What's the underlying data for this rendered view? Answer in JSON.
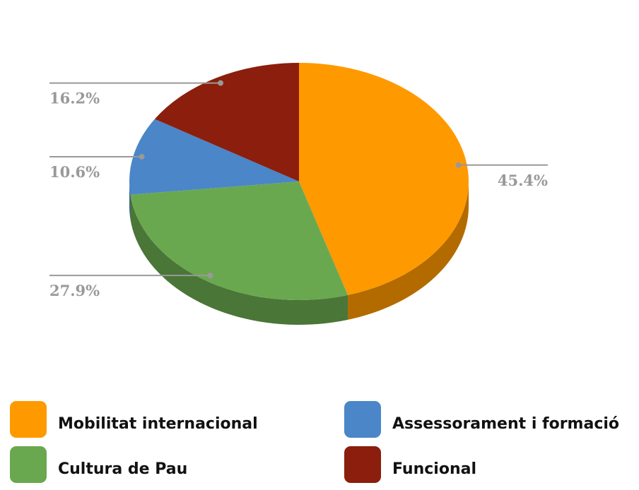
{
  "chart_data": {
    "type": "pie3d",
    "categories": [
      "Mobilitat internacional",
      "Cultura de Pau",
      "Assessorament i formació",
      "Funcional"
    ],
    "values": [
      45.4,
      27.9,
      10.6,
      16.2
    ],
    "value_labels": [
      "45.4%",
      "27.9%",
      "10.6%",
      "16.2%"
    ],
    "colors": [
      "#ff9900",
      "#6aa84f",
      "#4a86c8",
      "#8b1e0c"
    ],
    "legend": "bottom"
  }
}
